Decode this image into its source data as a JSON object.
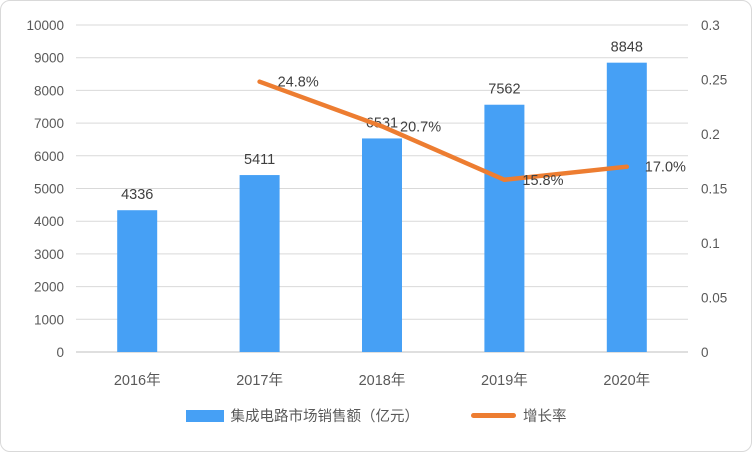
{
  "chart_data": {
    "type": "bar",
    "subtype": "combo-bar-line-dual-axis",
    "categories": [
      "2016年",
      "2017年",
      "2018年",
      "2019年",
      "2020年"
    ],
    "series": [
      {
        "name": "集成电路市场销售额（亿元）",
        "type": "bar",
        "axis": "left",
        "values": [
          4336,
          5411,
          6531,
          7562,
          8848
        ],
        "labels": [
          "4336",
          "5411",
          "6531",
          "7562",
          "8848"
        ],
        "color": "#46A0F5"
      },
      {
        "name": "增长率",
        "type": "line",
        "axis": "right",
        "values": [
          null,
          0.248,
          0.207,
          0.158,
          0.17
        ],
        "labels": [
          null,
          "24.8%",
          "20.7%",
          "15.8%",
          "17.0%"
        ],
        "color": "#ED7D31"
      }
    ],
    "title": "",
    "xlabel": "",
    "ylabel": "",
    "left_axis": {
      "min": 0,
      "max": 10000,
      "step": 1000,
      "ticks": [
        "0",
        "1000",
        "2000",
        "3000",
        "4000",
        "5000",
        "6000",
        "7000",
        "8000",
        "9000",
        "10000"
      ]
    },
    "right_axis": {
      "min": 0,
      "max": 0.3,
      "step": 0.05,
      "ticks": [
        "0",
        "0.05",
        "0.1",
        "0.15",
        "0.2",
        "0.25",
        "0.3"
      ]
    },
    "grid": true,
    "legend_position": "bottom"
  },
  "colors": {
    "bar": "#46A0F5",
    "line": "#ED7D31",
    "gridline": "#D9D9D9",
    "axis_line": "#BFBFBF",
    "axis_text": "#595959",
    "data_label": "#3F3F3F"
  }
}
